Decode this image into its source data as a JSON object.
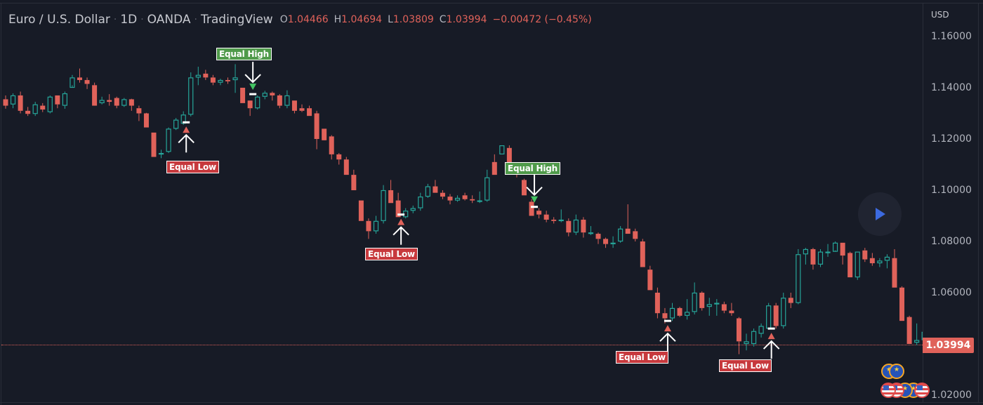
{
  "header": {
    "symbol": "Euro / U.S. Dollar",
    "interval": "1D",
    "exchange": "OANDA",
    "source": "TradingView",
    "separator": "·",
    "ohlc": {
      "open_label": "O",
      "open": "1.04466",
      "high_label": "H",
      "high": "1.04694",
      "low_label": "L",
      "low": "1.03809",
      "close_label": "C",
      "close": "1.03994",
      "change": "−0.00472 (−0.45%)"
    }
  },
  "price_scale": {
    "currency": "USD",
    "ticks": [
      "1.16000",
      "1.14000",
      "1.12000",
      "1.10000",
      "1.08000",
      "1.06000",
      "1.02000"
    ],
    "last_price": "1.03994"
  },
  "annotations": {
    "equal_high_label": "Equal High",
    "equal_low_label": "Equal Low"
  },
  "colors": {
    "bull": "#26a69a",
    "bear": "#e0625a",
    "equal_high": "#4f9a4a",
    "equal_low": "#c7393d",
    "background": "#171b26",
    "accent": "#3c6ae0"
  },
  "chart_data": {
    "type": "candlestick",
    "title": "Euro / U.S. Dollar · 1D · OANDA",
    "ylabel": "USD",
    "ylim": [
      1.015,
      1.17
    ],
    "last_price": 1.03994,
    "candles": [
      [
        1.1355,
        1.137,
        1.1318,
        1.133
      ],
      [
        1.1335,
        1.1378,
        1.132,
        1.137
      ],
      [
        1.137,
        1.1385,
        1.13,
        1.131
      ],
      [
        1.131,
        1.1325,
        1.129,
        1.1298
      ],
      [
        1.1298,
        1.1345,
        1.129,
        1.1335
      ],
      [
        1.133,
        1.134,
        1.1305,
        1.1315
      ],
      [
        1.1305,
        1.137,
        1.13,
        1.1365
      ],
      [
        1.137,
        1.137,
        1.132,
        1.1335
      ],
      [
        1.133,
        1.1385,
        1.1318,
        1.1378
      ],
      [
        1.14,
        1.145,
        1.141,
        1.144
      ],
      [
        1.144,
        1.1475,
        1.142,
        1.143
      ],
      [
        1.143,
        1.144,
        1.1395,
        1.1415
      ],
      [
        1.141,
        1.142,
        1.136,
        1.133
      ],
      [
        1.134,
        1.1365,
        1.1335,
        1.1352
      ],
      [
        1.1352,
        1.1375,
        1.133,
        1.1345
      ],
      [
        1.136,
        1.1365,
        1.132,
        1.133
      ],
      [
        1.133,
        1.136,
        1.1325,
        1.1355
      ],
      [
        1.1355,
        1.1357,
        1.131,
        1.133
      ],
      [
        1.132,
        1.133,
        1.127,
        1.13
      ],
      [
        1.13,
        1.1302,
        1.1245,
        1.1245
      ],
      [
        1.1225,
        1.1225,
        1.113,
        1.113
      ],
      [
        1.114,
        1.1158,
        1.1125,
        1.1145
      ],
      [
        1.115,
        1.1245,
        1.1145,
        1.124
      ],
      [
        1.124,
        1.1282,
        1.1235,
        1.1275
      ],
      [
        1.126,
        1.1308,
        1.1255,
        1.1295
      ],
      [
        1.1295,
        1.146,
        1.1288,
        1.144
      ],
      [
        1.144,
        1.1482,
        1.141,
        1.145
      ],
      [
        1.1455,
        1.147,
        1.143,
        1.144
      ],
      [
        1.144,
        1.145,
        1.141,
        1.142
      ],
      [
        1.142,
        1.1435,
        1.141,
        1.143
      ],
      [
        1.143,
        1.144,
        1.1415,
        1.1425
      ],
      [
        1.143,
        1.1492,
        1.138,
        1.144
      ],
      [
        1.14,
        1.14,
        1.134,
        1.134
      ],
      [
        1.135,
        1.135,
        1.129,
        1.132
      ],
      [
        1.132,
        1.137,
        1.1315,
        1.1365
      ],
      [
        1.1365,
        1.1388,
        1.1355,
        1.138
      ],
      [
        1.138,
        1.1385,
        1.135,
        1.137
      ],
      [
        1.137,
        1.1375,
        1.132,
        1.133
      ],
      [
        1.133,
        1.139,
        1.132,
        1.137
      ],
      [
        1.135,
        1.135,
        1.13,
        1.131
      ],
      [
        1.132,
        1.1335,
        1.1305,
        1.131
      ],
      [
        1.132,
        1.133,
        1.129,
        1.129
      ],
      [
        1.13,
        1.131,
        1.116,
        1.12
      ],
      [
        1.124,
        1.124,
        1.121,
        1.1195
      ],
      [
        1.121,
        1.1215,
        1.112,
        1.114
      ],
      [
        1.114,
        1.1145,
        1.11,
        1.112
      ],
      [
        1.112,
        1.113,
        1.106,
        1.106
      ],
      [
        1.106,
        1.108,
        1.1,
        1.1
      ],
      [
        1.096,
        1.096,
        1.088,
        1.088
      ],
      [
        1.088,
        1.089,
        1.081,
        1.084
      ],
      [
        1.084,
        1.09,
        1.083,
        1.088
      ],
      [
        1.088,
        1.102,
        1.087,
        1.1
      ],
      [
        1.1,
        1.104,
        1.095,
        1.095
      ],
      [
        1.096,
        1.099,
        1.0895,
        1.0895
      ],
      [
        1.0895,
        1.093,
        1.089,
        1.092
      ],
      [
        1.092,
        1.094,
        1.091,
        1.093
      ],
      [
        1.093,
        1.099,
        1.092,
        1.0975
      ],
      [
        1.0975,
        1.1025,
        1.097,
        1.1015
      ],
      [
        1.1015,
        1.104,
        1.099,
        1.099
      ],
      [
        1.099,
        1.1,
        1.0965,
        1.0975
      ],
      [
        1.0975,
        1.0985,
        1.0945,
        1.096
      ],
      [
        1.096,
        1.098,
        1.0955,
        1.097
      ],
      [
        1.098,
        1.099,
        1.096,
        1.0965
      ],
      [
        1.0965,
        1.098,
        1.095,
        1.096
      ],
      [
        1.096,
        1.0995,
        1.095,
        1.096
      ],
      [
        1.096,
        1.108,
        1.0955,
        1.105
      ],
      [
        1.111,
        1.114,
        1.106,
        1.106
      ],
      [
        1.114,
        1.1175,
        1.114,
        1.1175
      ],
      [
        1.1165,
        1.1175,
        1.1095,
        1.1095
      ],
      [
        1.108,
        1.1085,
        1.105,
        1.1065
      ],
      [
        1.104,
        1.1045,
        1.098,
        1.098
      ],
      [
        1.0955,
        1.0965,
        1.09,
        1.09
      ],
      [
        1.092,
        1.093,
        1.089,
        1.0905
      ],
      [
        1.0905,
        1.092,
        1.0875,
        1.0885
      ],
      [
        1.0885,
        1.0895,
        1.087,
        1.088
      ],
      [
        1.088,
        1.0925,
        1.0875,
        1.0885
      ],
      [
        1.088,
        1.089,
        1.082,
        1.0835
      ],
      [
        1.0835,
        1.0905,
        1.0825,
        1.0885
      ],
      [
        1.0885,
        1.0895,
        1.0815,
        1.0835
      ],
      [
        1.0835,
        1.086,
        1.0825,
        1.0835
      ],
      [
        1.083,
        1.0835,
        1.079,
        1.081
      ],
      [
        1.081,
        1.0815,
        1.0775,
        1.079
      ],
      [
        1.079,
        1.082,
        1.0775,
        1.0795
      ],
      [
        1.08,
        1.086,
        1.0795,
        1.085
      ],
      [
        1.085,
        1.0945,
        1.084,
        1.083
      ],
      [
        1.084,
        1.085,
        1.08,
        1.081
      ],
      [
        1.08,
        1.081,
        1.07,
        1.07
      ],
      [
        1.069,
        1.0705,
        1.061,
        1.061
      ],
      [
        1.06,
        1.062,
        1.05,
        1.052
      ],
      [
        1.052,
        1.054,
        1.048,
        1.05
      ],
      [
        1.05,
        1.056,
        1.049,
        1.054
      ],
      [
        1.054,
        1.0545,
        1.0505,
        1.051
      ],
      [
        1.051,
        1.0575,
        1.0495,
        1.0525
      ],
      [
        1.0525,
        1.064,
        1.0515,
        1.06
      ],
      [
        1.06,
        1.0605,
        1.053,
        1.054
      ],
      [
        1.0545,
        1.058,
        1.051,
        1.0555
      ],
      [
        1.0555,
        1.0575,
        1.051,
        1.056
      ],
      [
        1.0555,
        1.0565,
        1.052,
        1.053
      ],
      [
        1.053,
        1.056,
        1.051,
        1.052
      ],
      [
        1.05,
        1.0505,
        1.036,
        1.041
      ],
      [
        1.04,
        1.044,
        1.0375,
        1.041
      ],
      [
        1.04,
        1.046,
        1.039,
        1.045
      ],
      [
        1.044,
        1.048,
        1.0425,
        1.047
      ],
      [
        1.046,
        1.056,
        1.0455,
        1.055
      ],
      [
        1.055,
        1.056,
        1.046,
        1.047
      ],
      [
        1.047,
        1.06,
        1.046,
        1.058
      ],
      [
        1.058,
        1.06,
        1.054,
        1.056
      ],
      [
        1.056,
        1.077,
        1.0555,
        1.075
      ],
      [
        1.075,
        1.0775,
        1.071,
        1.077
      ],
      [
        1.077,
        1.0775,
        1.069,
        1.071
      ],
      [
        1.071,
        1.077,
        1.07,
        1.076
      ],
      [
        1.076,
        1.079,
        1.074,
        1.076
      ],
      [
        1.076,
        1.08,
        1.0765,
        1.0795
      ],
      [
        1.0795,
        1.0795,
        1.071,
        1.0745
      ],
      [
        1.0755,
        1.076,
        1.066,
        1.066
      ],
      [
        1.066,
        1.076,
        1.065,
        1.076
      ],
      [
        1.0765,
        1.0775,
        1.072,
        1.073
      ],
      [
        1.0735,
        1.0755,
        1.0705,
        1.0715
      ],
      [
        1.0715,
        1.0735,
        1.07,
        1.0725
      ],
      [
        1.0725,
        1.075,
        1.0695,
        1.074
      ],
      [
        1.0735,
        1.077,
        1.062,
        1.062
      ],
      [
        1.062,
        1.0625,
        1.049,
        1.049
      ],
      [
        1.0505,
        1.051,
        1.04,
        1.04
      ],
      [
        1.0405,
        1.048,
        1.0395,
        1.0415
      ],
      [
        1.0415,
        1.051,
        1.037,
        1.0447
      ],
      [
        1.0447,
        1.0469,
        1.0381,
        1.0399
      ]
    ],
    "markers": [
      {
        "type": "Equal Low",
        "candle_index": 24,
        "price": 1.1265
      },
      {
        "type": "Equal High",
        "candle_index": 33,
        "price": 1.1375
      },
      {
        "type": "Equal Low",
        "candle_index": 53,
        "price": 1.0905
      },
      {
        "type": "Equal High",
        "candle_index": 71,
        "price": 1.0935
      },
      {
        "type": "Equal Low",
        "candle_index": 89,
        "price": 1.049
      },
      {
        "type": "Equal Low",
        "candle_index": 103,
        "price": 1.046
      }
    ]
  }
}
